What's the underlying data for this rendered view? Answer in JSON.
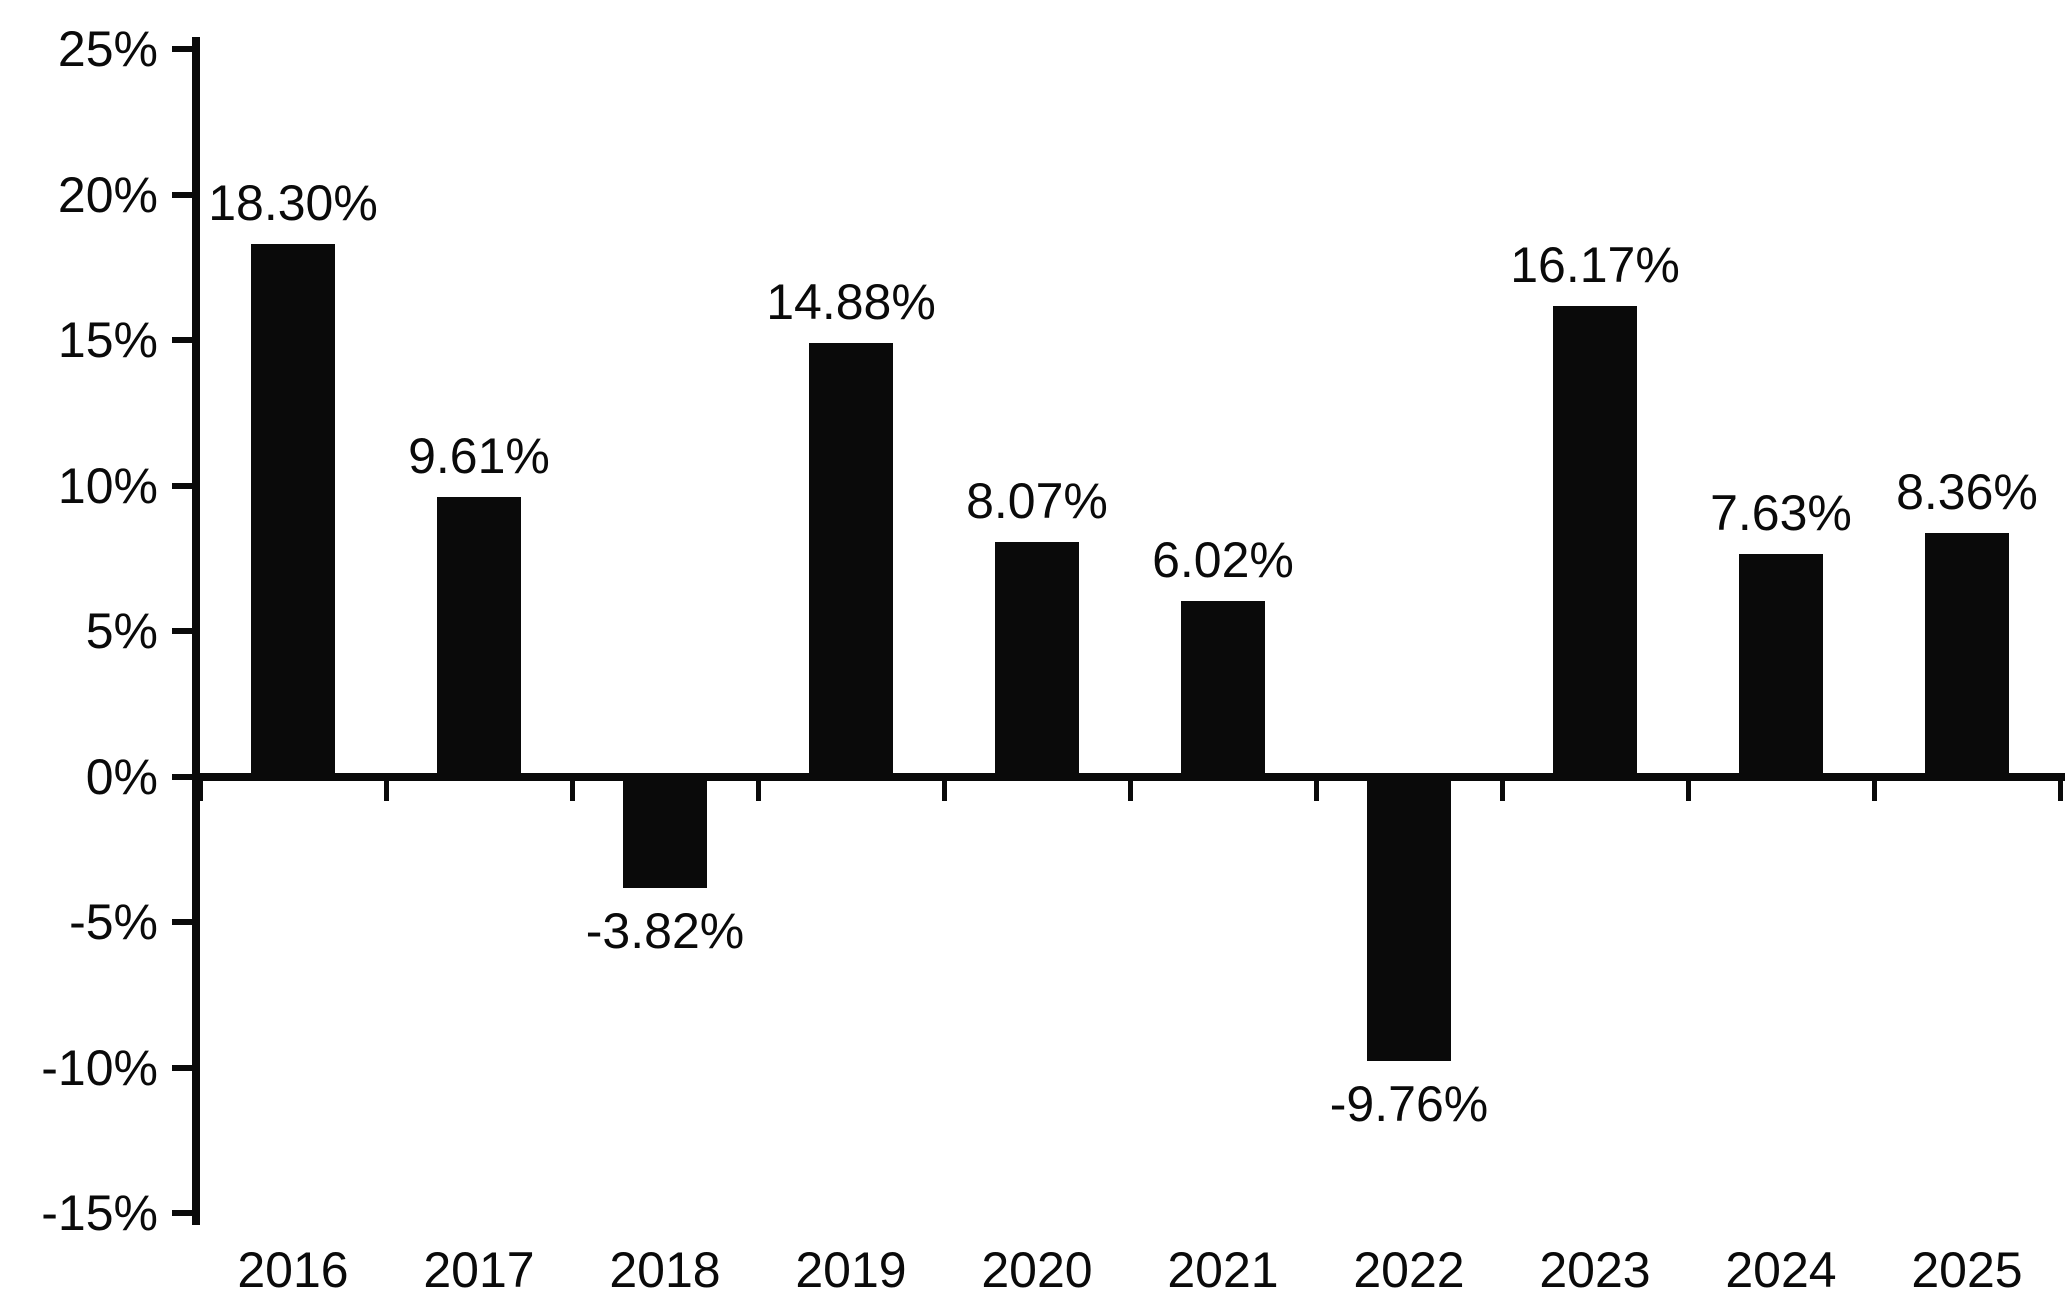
{
  "chart_data": {
    "type": "bar",
    "title": "",
    "xlabel": "",
    "ylabel": "",
    "categories": [
      "2016",
      "2017",
      "2018",
      "2019",
      "2020",
      "2021",
      "2022",
      "2023",
      "2024",
      "2025"
    ],
    "values": [
      18.3,
      9.61,
      -3.82,
      14.88,
      8.07,
      6.02,
      -9.76,
      16.17,
      7.63,
      8.36
    ],
    "bar_labels": [
      "18.30%",
      "9.61%",
      "-3.82%",
      "14.88%",
      "8.07%",
      "6.02%",
      "-9.76%",
      "16.17%",
      "7.63%",
      "8.36%"
    ],
    "ylim": [
      -15,
      25
    ],
    "yticks": [
      {
        "value": 25,
        "label": "25%"
      },
      {
        "value": 20,
        "label": "20%"
      },
      {
        "value": 15,
        "label": "15%"
      },
      {
        "value": 10,
        "label": "10%"
      },
      {
        "value": 5,
        "label": "5%"
      },
      {
        "value": 0,
        "label": "0%"
      },
      {
        "value": -5,
        "label": "-5%"
      },
      {
        "value": -10,
        "label": "-10%"
      },
      {
        "value": -15,
        "label": "-15%"
      }
    ],
    "bar_color": "#0a0a0a",
    "text_color": "#0a0a0a",
    "background_color": "#ffffff",
    "grid": false,
    "legend": null,
    "value_label_position": "outside-end"
  }
}
